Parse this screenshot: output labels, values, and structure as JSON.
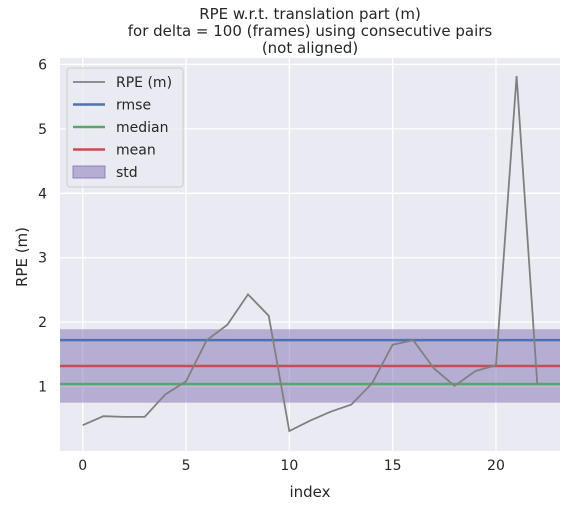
{
  "chart_data": {
    "type": "line",
    "title": [
      "RPE w.r.t. translation part (m)",
      "for delta = 100 (frames) using consecutive pairs",
      "(not aligned)"
    ],
    "xlabel": "index",
    "ylabel": "RPE (m)",
    "xlim": [
      -1.1,
      23.1
    ],
    "ylim": [
      0.0,
      6.1
    ],
    "xticks": [
      0,
      5,
      10,
      15,
      20
    ],
    "yticks": [
      1,
      2,
      3,
      4,
      5,
      6
    ],
    "grid": true,
    "legend_position": "top-left",
    "series": [
      {
        "name": "RPE (m)",
        "color": "#808080",
        "x": [
          0,
          1,
          2,
          3,
          4,
          5,
          6,
          7,
          8,
          9,
          10,
          11,
          12,
          13,
          14,
          15,
          16,
          17,
          18,
          19,
          20,
          21,
          22
        ],
        "values": [
          0.4,
          0.54,
          0.53,
          0.53,
          0.88,
          1.08,
          1.72,
          1.96,
          2.43,
          2.1,
          0.31,
          0.47,
          0.61,
          0.72,
          1.05,
          1.65,
          1.72,
          1.28,
          1.01,
          1.24,
          1.33,
          5.82,
          1.03
        ]
      }
    ],
    "reference_lines": [
      {
        "name": "rmse",
        "value": 1.72,
        "color": "#4c72b0"
      },
      {
        "name": "median",
        "value": 1.04,
        "color": "#55a868"
      },
      {
        "name": "mean",
        "value": 1.32,
        "color": "#c44e52"
      }
    ],
    "std_band": {
      "name": "std",
      "lower": 0.75,
      "upper": 1.89,
      "color": "#8172b2"
    }
  }
}
